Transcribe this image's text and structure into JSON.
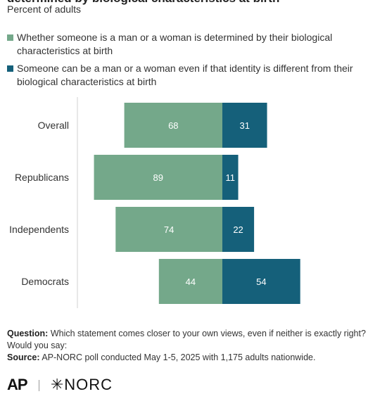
{
  "title": "determined by biological characteristics at birth",
  "subtitle": "Percent of adults",
  "colors": {
    "series1": "#74a88a",
    "series2": "#15607a",
    "axis": "#d0d0d0",
    "bar_text": "#ffffff"
  },
  "chart_data": {
    "type": "bar",
    "orientation": "horizontal-diverging",
    "categories": [
      "Overall",
      "Republicans",
      "Independents",
      "Democrats"
    ],
    "series": [
      {
        "name": "Whether someone is a man or a woman is determined by their biological characteristics at birth",
        "values": [
          68,
          89,
          74,
          44
        ]
      },
      {
        "name": "Someone can be a man or a woman even if that identity is different from their biological characteristics at birth",
        "values": [
          31,
          11,
          22,
          54
        ]
      }
    ],
    "legend_position": "top-left"
  },
  "notes": {
    "question_label": "Question:",
    "question_text": "Which statement comes closer to your own views, even if neither is exactly right? Would you say:",
    "source_label": "Source:",
    "source_text": "AP-NORC poll conducted May 1-5, 2025 with 1,175 adults nationwide."
  },
  "logos": {
    "ap": "AP",
    "norc": "NORC"
  }
}
